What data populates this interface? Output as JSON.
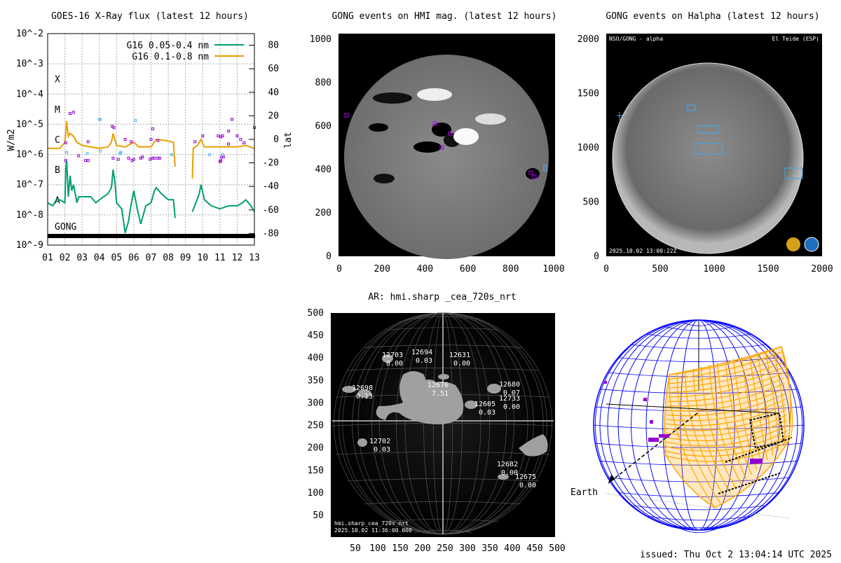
{
  "footer": {
    "issued": "issued: Thu Oct  2 13:04:14 UTC 2025"
  },
  "chart_data": [
    {
      "type": "line",
      "title": "GOES-16 X-Ray flux (latest 12 hours)",
      "ylabel": "W/m2",
      "y2label": "lat",
      "yscale": "log",
      "ylim_log10": [
        -9,
        -2
      ],
      "y2lim": [
        -90,
        90
      ],
      "xlim": [
        1,
        13
      ],
      "grid": true,
      "legend_position": "top-right",
      "xticks": [
        "01",
        "02",
        "03",
        "04",
        "05",
        "06",
        "07",
        "08",
        "09",
        "10",
        "11",
        "12",
        "13"
      ],
      "yticks": [
        "10^-2",
        "10^-3",
        "10^-4",
        "10^-5",
        "10^-6",
        "10^-7",
        "10^-8",
        "10^-9"
      ],
      "y2ticks": [
        80,
        60,
        40,
        20,
        0,
        -20,
        -40,
        -60,
        -80
      ],
      "class_labels": [
        "X",
        "M",
        "C",
        "B",
        "A"
      ],
      "gong_label": "GONG",
      "series": [
        {
          "name": "G16 0.05-0.4 nm",
          "color": "#009e73",
          "x": [
            1.0,
            1.3,
            1.5,
            1.7,
            2.0,
            2.05,
            2.1,
            2.2,
            2.3,
            2.4,
            2.5,
            2.7,
            2.8,
            3.0,
            3.5,
            3.8,
            4.0,
            4.5,
            4.7,
            4.8,
            4.9,
            5.0,
            5.3,
            5.5,
            5.7,
            5.8,
            6.0,
            6.2,
            6.4,
            6.7,
            7.0,
            7.2,
            7.3,
            7.6,
            8.0,
            8.3,
            8.4,
            null,
            9.4,
            9.6,
            9.8,
            9.9,
            10.1,
            10.5,
            11.0,
            11.5,
            12.0,
            12.3,
            12.5,
            12.8,
            13.0
          ],
          "log10": [
            -7.6,
            -7.7,
            -7.5,
            -7.5,
            -7.6,
            -6.5,
            -6.2,
            -7.4,
            -6.7,
            -7.2,
            -7.0,
            -7.6,
            -7.4,
            -7.4,
            -7.4,
            -7.6,
            -7.5,
            -7.3,
            -7.1,
            -6.5,
            -6.9,
            -7.6,
            -7.8,
            -8.6,
            -8.2,
            -7.8,
            -7.2,
            -7.8,
            -8.3,
            -7.7,
            -7.6,
            -7.2,
            -7.1,
            -7.3,
            -7.5,
            -7.5,
            -8.1,
            null,
            -7.9,
            -7.6,
            -7.3,
            -7.0,
            -7.5,
            -7.7,
            -7.8,
            -7.7,
            -7.7,
            -7.6,
            -7.5,
            -7.7,
            -7.9
          ]
        },
        {
          "name": "G16 0.1-0.8 nm",
          "color": "#e69f00",
          "x": [
            1.0,
            1.7,
            2.0,
            2.05,
            2.1,
            2.2,
            2.3,
            2.5,
            2.7,
            3.0,
            4.0,
            4.5,
            4.7,
            4.8,
            5.0,
            5.5,
            6.0,
            6.3,
            7.0,
            7.3,
            8.0,
            8.3,
            8.4,
            null,
            9.4,
            9.45,
            9.7,
            9.9,
            10.1,
            11.0,
            12.0,
            12.5,
            13.0
          ],
          "log10": [
            -5.8,
            -5.8,
            -5.6,
            -5.3,
            -4.9,
            -5.4,
            -5.3,
            -5.4,
            -5.6,
            -5.7,
            -5.8,
            -5.75,
            -5.6,
            -5.3,
            -5.7,
            -5.75,
            -5.6,
            -5.75,
            -5.75,
            -5.5,
            -5.55,
            -5.6,
            -6.4,
            null,
            -6.8,
            -5.8,
            -5.7,
            -5.5,
            -5.75,
            -5.75,
            -5.75,
            -5.7,
            -5.8
          ]
        }
      ],
      "events_hmi": {
        "color": "#9400d3",
        "hour": [
          2.05,
          2.05,
          2.3,
          2.5,
          2.8,
          3.2,
          3.35,
          3.35,
          4.75,
          4.85,
          4.8,
          5.1,
          5.5,
          5.7,
          5.85,
          5.9,
          6.0,
          6.4,
          6.5,
          6.95,
          7.05,
          7.0,
          7.1,
          7.2,
          7.4,
          7.4,
          7.5,
          9.55,
          10.0,
          10.9,
          11.05,
          11.0,
          11.05,
          11.1,
          11.15,
          11.2,
          11.5,
          11.5,
          11.7,
          12.0,
          12.2,
          12.4,
          13.0
        ],
        "lat": [
          -3,
          -18,
          22,
          23,
          -14,
          -18,
          -18,
          -2,
          11,
          10,
          -16,
          -17,
          0,
          -16,
          -2,
          -18,
          -17,
          -16,
          -15,
          -17,
          -16,
          0,
          9,
          -16,
          -1,
          -16,
          -16,
          -2,
          3,
          3,
          2,
          -19,
          -18,
          -15,
          3,
          -15,
          7,
          -4,
          17,
          3,
          0,
          -3,
          10
        ]
      },
      "events_halpha": {
        "color": "#56b4e9",
        "hour": [
          2.1,
          3.3,
          4.0,
          4.05,
          4.05,
          5.2,
          5.25,
          6.1,
          8.2,
          10.4,
          11.15
        ],
        "lat": [
          -11,
          -12,
          17,
          17,
          -10,
          -12,
          -11,
          16,
          -13,
          -13,
          -13
        ]
      }
    },
    {
      "type": "image",
      "title": "GONG events on HMI mag. (latest 12 hours)",
      "xticks": [
        0,
        200,
        400,
        600,
        800,
        1000
      ],
      "yticks": [
        0,
        200,
        400,
        600,
        800,
        1000
      ]
    },
    {
      "type": "image",
      "title": "GONG events on Halpha (latest 12 hours)",
      "xticks": [
        0,
        500,
        1000,
        1500,
        2000
      ],
      "yticks": [
        0,
        500,
        1000,
        1500,
        2000
      ],
      "overlay": {
        "top_left": "NSO/GONG - alpha",
        "top_right": "El Teide (ESP)",
        "bottom_left": "2025.10.02 13:00:22Z"
      }
    },
    {
      "type": "image",
      "title": "AR: hmi.sharp _cea_720s_nrt",
      "xticks": [
        50,
        100,
        150,
        200,
        250,
        300,
        350,
        400,
        450,
        500
      ],
      "yticks": [
        50,
        100,
        150,
        200,
        250,
        300,
        350,
        400,
        450,
        500
      ],
      "regions": [
        {
          "id": "12703",
          "val": "0.00"
        },
        {
          "id": "12694",
          "val": "0.03"
        },
        {
          "id": "12631",
          "val": "0.00"
        },
        {
          "id": "12676",
          "val": "7.51"
        },
        {
          "id": "12698",
          "val": "0.13"
        },
        {
          "id": "12605",
          "val": "0.03"
        },
        {
          "id": "12680",
          "val": "0.07"
        },
        {
          "id": "12733",
          "val": "0.00"
        },
        {
          "id": "12702",
          "val": "0.03"
        },
        {
          "id": "12682",
          "val": "0.00"
        },
        {
          "id": "12675",
          "val": "0.00"
        }
      ],
      "overlay": {
        "line1": "hmi.sharp_cea_720s_nrt",
        "line2": "2025.10.02 11:36:00.000"
      }
    },
    {
      "type": "diagram",
      "label": "Earth"
    }
  ]
}
